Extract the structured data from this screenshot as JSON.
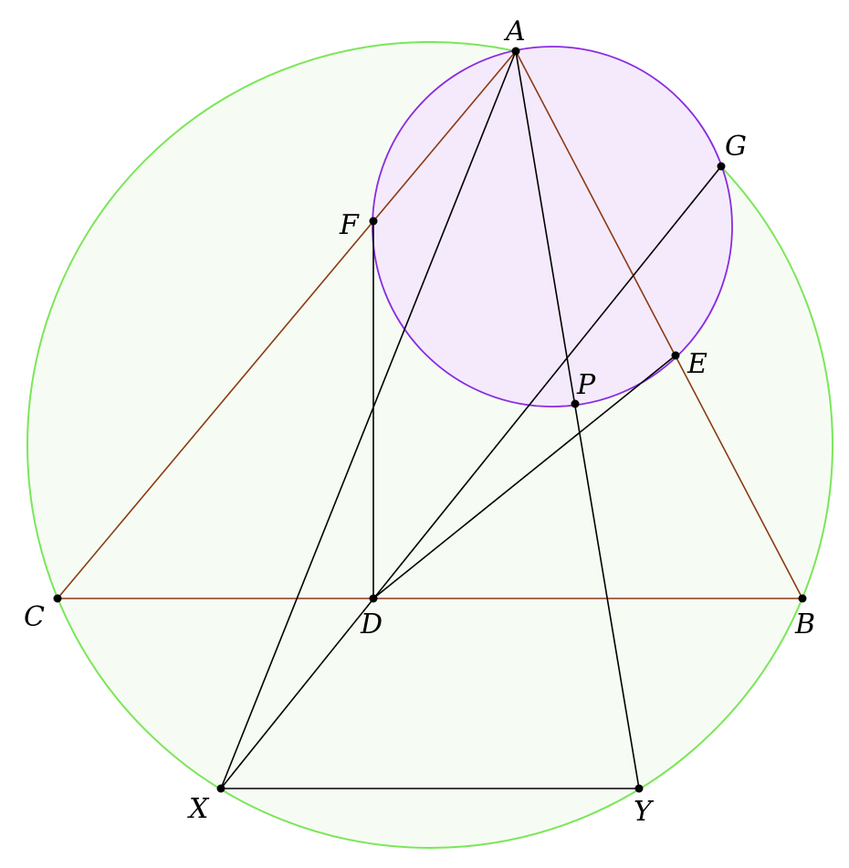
{
  "colors": {
    "circumcircle_stroke": "#7be65a",
    "circumcircle_fill": "#f6fcf3",
    "small_circle_stroke": "#8a2be2",
    "small_circle_fill": "#f4eafc",
    "triangle_stroke": "#8b3a14",
    "line_stroke": "#000000",
    "point_fill": "#000000"
  },
  "labels": {
    "A": "A",
    "B": "B",
    "C": "C",
    "D": "D",
    "E": "E",
    "F": "F",
    "G": "G",
    "P": "P",
    "X": "X",
    "Y": "Y"
  }
}
